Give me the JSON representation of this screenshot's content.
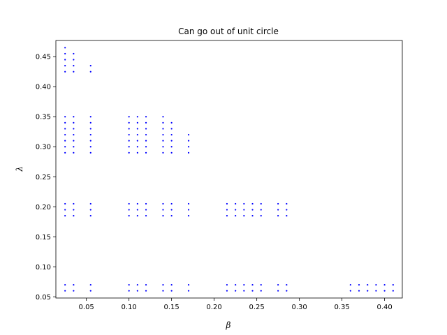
{
  "chart_data": {
    "type": "scatter",
    "title": "Can go out of unit circle",
    "xlabel": "β",
    "ylabel": "λ",
    "xlim": [
      0.0142,
      0.4208
    ],
    "ylim": [
      0.048,
      0.477
    ],
    "xticks": [
      0.05,
      0.1,
      0.15,
      0.2,
      0.25,
      0.3,
      0.35,
      0.4
    ],
    "xtick_labels": [
      "0.05",
      "0.10",
      "0.15",
      "0.20",
      "0.25",
      "0.30",
      "0.35",
      "0.40"
    ],
    "yticks": [
      0.05,
      0.1,
      0.15,
      0.2,
      0.25,
      0.3,
      0.35,
      0.4,
      0.45
    ],
    "ytick_labels": [
      "0.05",
      "0.10",
      "0.15",
      "0.20",
      "0.25",
      "0.30",
      "0.35",
      "0.40",
      "0.45"
    ],
    "grid": false,
    "marker_color": "#0000ff",
    "points_compact": [
      [
        0.025,
        [
          0.425,
          0.435,
          0.445,
          0.455,
          0.465,
          0.29,
          0.3,
          0.31,
          0.32,
          0.33,
          0.34,
          0.35,
          0.185,
          0.195,
          0.205,
          0.06,
          0.07
        ]
      ],
      [
        0.035,
        [
          0.425,
          0.435,
          0.445,
          0.455,
          0.29,
          0.3,
          0.31,
          0.32,
          0.33,
          0.34,
          0.35,
          0.185,
          0.195,
          0.205,
          0.06,
          0.07
        ]
      ],
      [
        0.055,
        [
          0.425,
          0.435,
          0.29,
          0.3,
          0.31,
          0.32,
          0.33,
          0.34,
          0.35,
          0.185,
          0.195,
          0.205,
          0.06,
          0.07
        ]
      ],
      [
        0.1,
        [
          0.29,
          0.3,
          0.31,
          0.32,
          0.33,
          0.34,
          0.35,
          0.185,
          0.195,
          0.205,
          0.06,
          0.07
        ]
      ],
      [
        0.11,
        [
          0.29,
          0.3,
          0.31,
          0.32,
          0.33,
          0.34,
          0.35,
          0.185,
          0.195,
          0.205,
          0.06,
          0.07
        ]
      ],
      [
        0.12,
        [
          0.29,
          0.3,
          0.31,
          0.32,
          0.33,
          0.34,
          0.35,
          0.185,
          0.195,
          0.205,
          0.06,
          0.07
        ]
      ],
      [
        0.14,
        [
          0.29,
          0.3,
          0.31,
          0.32,
          0.33,
          0.34,
          0.35,
          0.185,
          0.195,
          0.205,
          0.06,
          0.07
        ]
      ],
      [
        0.15,
        [
          0.29,
          0.3,
          0.31,
          0.32,
          0.33,
          0.34,
          0.185,
          0.195,
          0.205,
          0.06,
          0.07
        ]
      ],
      [
        0.17,
        [
          0.29,
          0.3,
          0.31,
          0.32,
          0.185,
          0.195,
          0.205,
          0.06,
          0.07
        ]
      ],
      [
        0.215,
        [
          0.185,
          0.195,
          0.205,
          0.06,
          0.07
        ]
      ],
      [
        0.225,
        [
          0.185,
          0.195,
          0.205,
          0.06,
          0.07
        ]
      ],
      [
        0.235,
        [
          0.185,
          0.195,
          0.205,
          0.06,
          0.07
        ]
      ],
      [
        0.245,
        [
          0.185,
          0.195,
          0.205,
          0.06,
          0.07
        ]
      ],
      [
        0.255,
        [
          0.185,
          0.195,
          0.205,
          0.06,
          0.07
        ]
      ],
      [
        0.275,
        [
          0.185,
          0.195,
          0.205,
          0.06,
          0.07
        ]
      ],
      [
        0.285,
        [
          0.185,
          0.195,
          0.205,
          0.06,
          0.07
        ]
      ],
      [
        0.36,
        [
          0.06,
          0.07
        ]
      ],
      [
        0.37,
        [
          0.06,
          0.07
        ]
      ],
      [
        0.38,
        [
          0.06,
          0.07
        ]
      ],
      [
        0.39,
        [
          0.06,
          0.07
        ]
      ],
      [
        0.4,
        [
          0.06,
          0.07
        ]
      ],
      [
        0.41,
        [
          0.06,
          0.07
        ]
      ]
    ]
  }
}
